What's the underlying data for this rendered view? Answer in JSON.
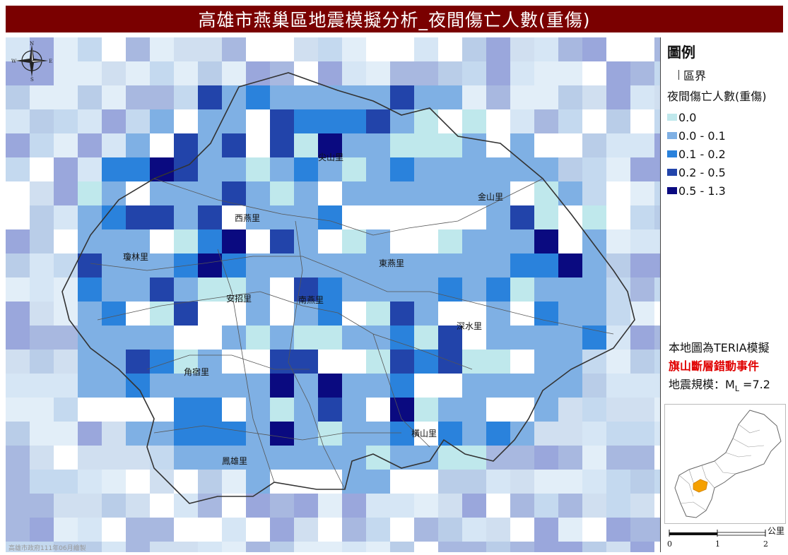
{
  "title": "高雄市燕巢區地震模擬分析_夜間傷亡人數(重傷)",
  "compass": {
    "n": "N",
    "s": "S",
    "e": "E",
    "w": "W"
  },
  "villages": [
    "尖山里",
    "金山里",
    "西燕里",
    "東燕里",
    "瓊林里",
    "安招里",
    "南燕里",
    "深水里",
    "角宿里",
    "橫山里",
    "鳳雄里"
  ],
  "credit": "高雄市政府111年06月繪製",
  "legend": {
    "title": "圖例",
    "boundary_label": "區界",
    "subtitle": "夜間傷亡人數(重傷)",
    "classes": [
      {
        "label": "0.0",
        "color": "#bfe8ec"
      },
      {
        "label": "0.0 - 0.1",
        "color": "#7fb0e4"
      },
      {
        "label": "0.1 - 0.2",
        "color": "#2a82dc"
      },
      {
        "label": "0.2 - 0.5",
        "color": "#2244aa"
      },
      {
        "label": "0.5 - 1.3",
        "color": "#0a0a80"
      }
    ]
  },
  "note": {
    "line1": "本地圖為TERIA模擬",
    "line2": "旗山斷層錯動事件",
    "line3_prefix": "地震規模：M",
    "line3_sub": "L",
    "line3_suffix": " =7.2"
  },
  "inset_highlight_color": "#f5a000",
  "scalebar": {
    "labels": [
      "0",
      "1",
      "2"
    ],
    "unit": "公里"
  }
}
